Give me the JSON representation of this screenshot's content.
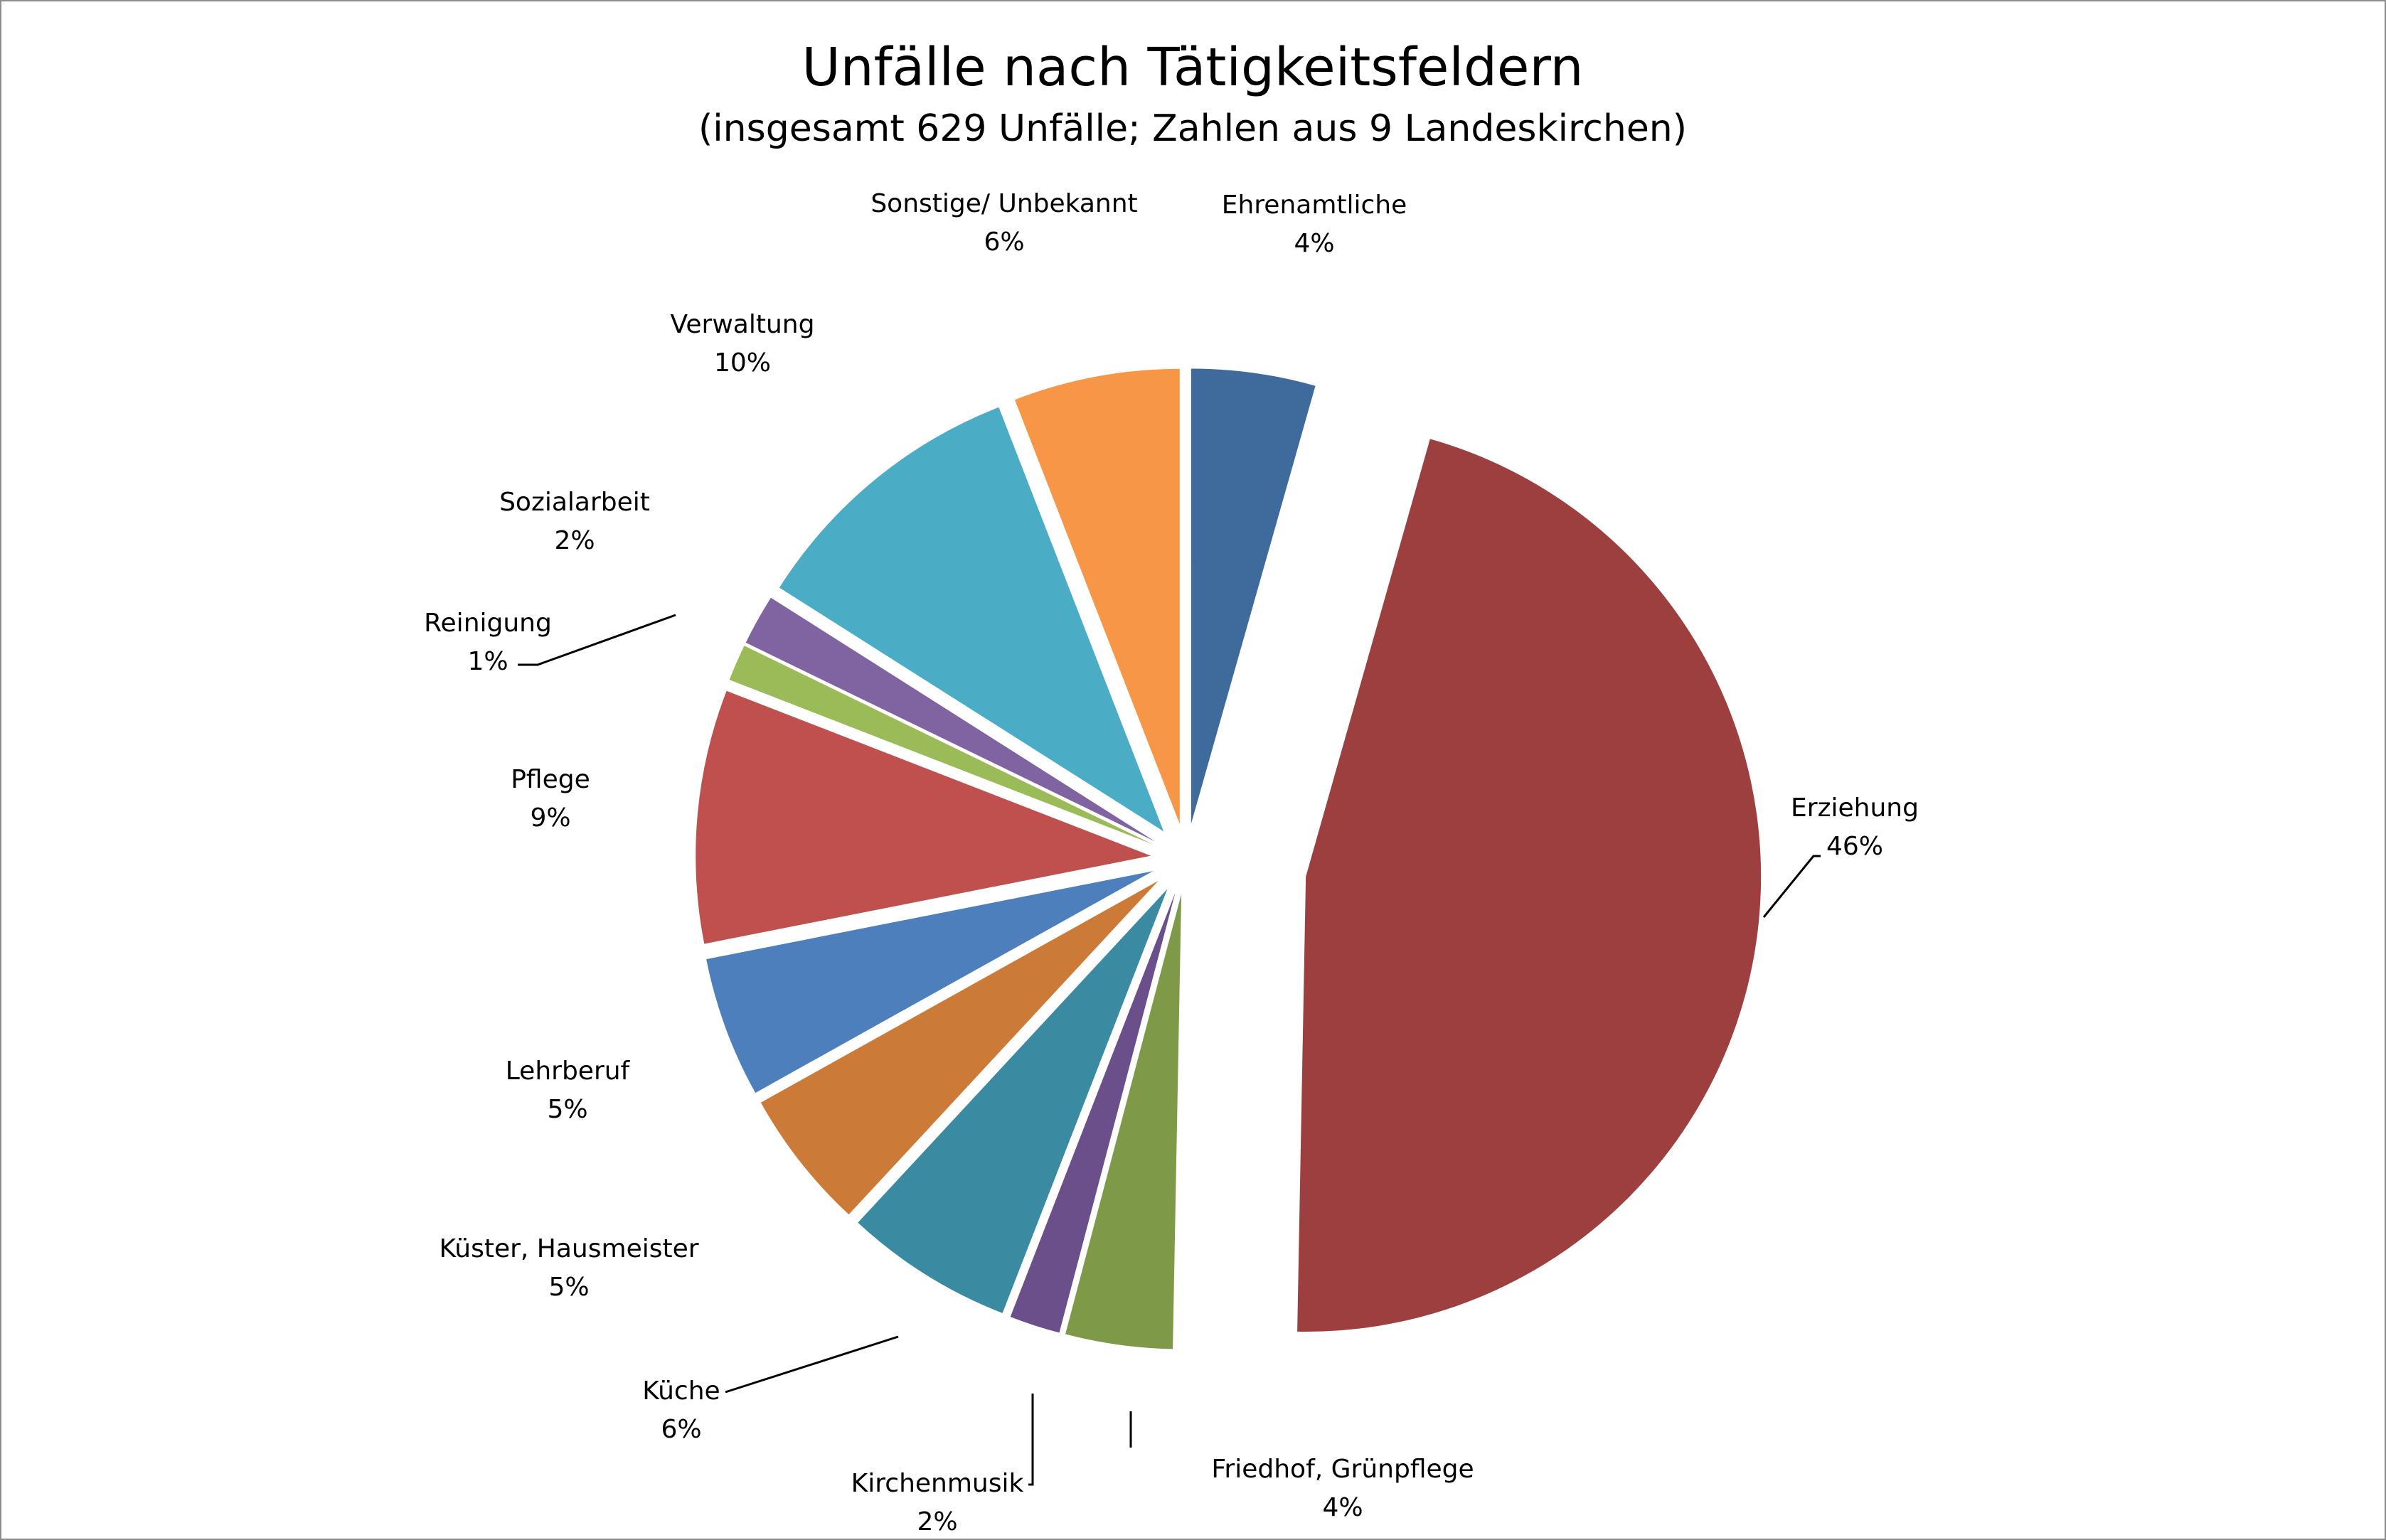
{
  "chart_data": {
    "type": "pie",
    "title": "Unfälle nach Tätigkeitsfeldern",
    "subtitle": "(insgesamt 629 Unfälle; Zahlen aus 9 Landeskirchen)",
    "exploded": true,
    "legend": "none",
    "slices": [
      {
        "label": "Ehrenamtliche",
        "percent": "4%",
        "value": 4.4,
        "color": "#3e6a9c"
      },
      {
        "label": "Erziehung",
        "percent": "46%",
        "value": 45.9,
        "color": "#9e3f3f"
      },
      {
        "label": "Friedhof, Grünpflege",
        "percent": "4%",
        "value": 3.8,
        "color": "#7e9a48"
      },
      {
        "label": "Kirchenmusik",
        "percent": "2%",
        "value": 1.8,
        "color": "#6a4f8a"
      },
      {
        "label": "Küche",
        "percent": "6%",
        "value": 6.0,
        "color": "#3a8ba2"
      },
      {
        "label": "Küster, Hausmeister",
        "percent": "5%",
        "value": 5.0,
        "color": "#cb7a37"
      },
      {
        "label": "Lehrberuf",
        "percent": "5%",
        "value": 5.0,
        "color": "#4e7fbd"
      },
      {
        "label": "Pflege",
        "percent": "9%",
        "value": 9.0,
        "color": "#c0504d"
      },
      {
        "label": "Reinigung",
        "percent": "1%",
        "value": 1.3,
        "color": "#9bbb59"
      },
      {
        "label": "Sozialarbeit",
        "percent": "2%",
        "value": 1.8,
        "color": "#8064a2"
      },
      {
        "label": "Verwaltung",
        "percent": "10%",
        "value": 10.1,
        "color": "#4bacc6"
      },
      {
        "label": "Sonstige/ Unbekannt",
        "percent": "6%",
        "value": 5.9,
        "color": "#f79646"
      }
    ]
  }
}
